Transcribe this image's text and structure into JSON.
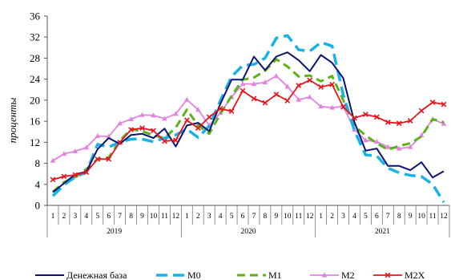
{
  "chart_data": {
    "type": "line",
    "ylabel": "проценты",
    "ylim": [
      0,
      36
    ],
    "yticks": [
      0,
      4,
      8,
      12,
      16,
      20,
      24,
      28,
      32,
      36
    ],
    "grid": false,
    "legend_position": "bottom",
    "months": [
      "1",
      "2",
      "3",
      "4",
      "5",
      "6",
      "7",
      "8",
      "9",
      "10",
      "11",
      "12",
      "1",
      "2",
      "3",
      "4",
      "5",
      "6",
      "7",
      "8",
      "9",
      "10",
      "11",
      "12",
      "1",
      "2",
      "3",
      "4",
      "5",
      "6",
      "7",
      "8",
      "9",
      "10",
      "11",
      "12"
    ],
    "years": [
      {
        "label": "2019",
        "start": 0,
        "end": 11
      },
      {
        "label": "2020",
        "start": 12,
        "end": 23
      },
      {
        "label": "2021",
        "start": 24,
        "end": 35
      }
    ],
    "series": [
      {
        "name": "Денежная база",
        "color": "#0b1470",
        "dash": "solid",
        "marker": "none",
        "values": [
          2.5,
          4.2,
          5.9,
          6.4,
          10.7,
          12.8,
          11.7,
          13.4,
          13.6,
          12.8,
          14.6,
          11.2,
          15.2,
          15.7,
          14.1,
          19.3,
          23.9,
          23.9,
          28.3,
          25.7,
          28.3,
          29.1,
          27.6,
          25.5,
          28.6,
          27.1,
          24.2,
          15.8,
          10.4,
          10.8,
          7.5,
          7.5,
          6.7,
          8.2,
          5.3,
          6.5
        ]
      },
      {
        "name": "M0",
        "color": "#19b2e6",
        "dash": "long",
        "marker": "none",
        "values": [
          1.8,
          3.9,
          5.4,
          6.3,
          11.6,
          11.1,
          12.0,
          12.6,
          12.6,
          12.1,
          12.8,
          13.4,
          14.5,
          12.9,
          15.1,
          19.9,
          24.5,
          26.6,
          26.8,
          28.0,
          31.8,
          32.3,
          29.6,
          29.3,
          31.0,
          30.3,
          21.0,
          14.2,
          9.6,
          9.4,
          7.1,
          6.2,
          5.7,
          5.5,
          4.0,
          0.6
        ]
      },
      {
        "name": "M1",
        "color": "#5cb21b",
        "dash": "medium",
        "marker": "none",
        "values": [
          2.6,
          4.4,
          5.4,
          6.9,
          8.8,
          9.1,
          12.3,
          14.5,
          14.1,
          13.3,
          12.8,
          14.8,
          18.2,
          15.2,
          13.6,
          17.4,
          20.8,
          23.9,
          24.3,
          25.6,
          27.8,
          26.4,
          24.5,
          24.7,
          23.6,
          24.6,
          20.0,
          15.1,
          13.3,
          11.8,
          10.6,
          11.3,
          11.8,
          13.1,
          16.4,
          15.8
        ]
      },
      {
        "name": "M2",
        "color": "#e183e1",
        "dash": "solid",
        "marker": "triangle",
        "values": [
          8.5,
          9.8,
          10.3,
          11.0,
          13.2,
          13.1,
          15.6,
          16.4,
          17.2,
          17.1,
          16.5,
          17.4,
          20.1,
          18.2,
          15.2,
          17.6,
          20.6,
          23.1,
          23.1,
          23.4,
          24.6,
          22.6,
          20.1,
          20.6,
          18.8,
          18.6,
          18.8,
          14.4,
          12.4,
          12.1,
          11.1,
          10.8,
          11.1,
          13.3,
          16.4,
          15.5
        ]
      },
      {
        "name": "M2X",
        "color": "#e8141b",
        "dash": "solid",
        "marker": "x",
        "values": [
          4.9,
          5.5,
          5.8,
          6.3,
          8.8,
          8.8,
          12.0,
          14.4,
          14.7,
          14.2,
          12.2,
          12.4,
          16.2,
          14.7,
          16.8,
          18.4,
          17.9,
          21.8,
          20.3,
          19.5,
          21.1,
          19.9,
          22.8,
          23.8,
          22.5,
          23.0,
          18.7,
          16.6,
          17.3,
          16.8,
          15.8,
          15.6,
          16.1,
          18.0,
          19.6,
          19.2
        ]
      }
    ]
  }
}
